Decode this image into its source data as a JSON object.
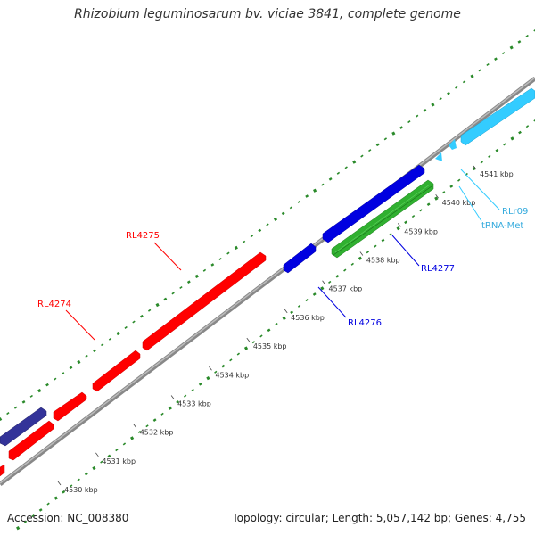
{
  "title": "Rhizobium leguminosarum bv. viciae 3841, complete genome",
  "accession": "Accession: NC_008380",
  "topology": "Topology: circular; Length: 5,057,142 bp; Genes: 4,755",
  "colors": {
    "backbone": "#999999",
    "gc_ticks": "#2a8a2a",
    "red": "#ff0000",
    "blue": "#0000e0",
    "navy": "#333399",
    "green": "#30b030",
    "cyan": "#33ccff"
  },
  "scale_labels": [
    "4530 kbp",
    "4531 kbp",
    "4532 kbp",
    "4533 kbp",
    "4534 kbp",
    "4535 kbp",
    "4536 kbp",
    "4537 kbp",
    "4538 kbp",
    "4539 kbp",
    "4540 kbp",
    "4541 kbp"
  ],
  "gene_labels": {
    "rl4274": "RL4274",
    "rl4275": "RL4275",
    "rl4276": "RL4276",
    "rl4277": "RL4277",
    "rlr09": "RLr09",
    "trna_met": "tRNA-Met"
  }
}
